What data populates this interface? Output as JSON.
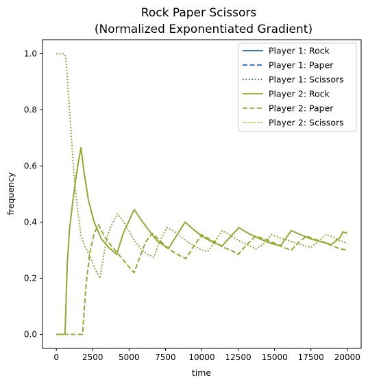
{
  "chart_data": {
    "type": "line",
    "title_line1": "Rock Paper Scissors",
    "title_line2": "(Normalized Exponentiated Gradient)",
    "xlabel": "time",
    "ylabel": "frequency",
    "xlim": [
      -950,
      20950
    ],
    "ylim": [
      -0.05,
      1.05
    ],
    "xticks": [
      0,
      2500,
      5000,
      7500,
      10000,
      12500,
      15000,
      17500,
      20000
    ],
    "yticks": [
      0.0,
      0.2,
      0.4,
      0.6,
      0.8,
      1.0
    ],
    "xtick_labels": [
      "0",
      "2500",
      "5000",
      "7500",
      "10000",
      "12500",
      "15000",
      "17500",
      "20000"
    ],
    "ytick_labels": [
      "0.0",
      "0.2",
      "0.4",
      "0.6",
      "0.8",
      "1.0"
    ],
    "legend_position": "upper right",
    "series": [
      {
        "name": "Player 1: Rock",
        "color": "#1565c0",
        "dash": "solid",
        "points": [
          [
            0,
            0
          ],
          [
            600,
            0
          ],
          [
            750,
            0.25
          ],
          [
            900,
            0.37
          ],
          [
            1100,
            0.46
          ],
          [
            1300,
            0.54
          ],
          [
            1500,
            0.61
          ],
          [
            1700,
            0.665
          ],
          [
            1900,
            0.58
          ],
          [
            2200,
            0.48
          ],
          [
            2600,
            0.4
          ],
          [
            3100,
            0.34
          ],
          [
            3600,
            0.31
          ],
          [
            4150,
            0.285
          ],
          [
            4600,
            0.36
          ],
          [
            5000,
            0.405
          ],
          [
            5350,
            0.445
          ],
          [
            5800,
            0.41
          ],
          [
            6300,
            0.375
          ],
          [
            6900,
            0.335
          ],
          [
            7700,
            0.305
          ],
          [
            8300,
            0.355
          ],
          [
            8850,
            0.4
          ],
          [
            9400,
            0.375
          ],
          [
            10000,
            0.35
          ],
          [
            10700,
            0.33
          ],
          [
            11400,
            0.315
          ],
          [
            12000,
            0.35
          ],
          [
            12550,
            0.38
          ],
          [
            13200,
            0.36
          ],
          [
            14000,
            0.34
          ],
          [
            14700,
            0.325
          ],
          [
            15400,
            0.315
          ],
          [
            16150,
            0.37
          ],
          [
            16800,
            0.355
          ],
          [
            17500,
            0.34
          ],
          [
            18200,
            0.33
          ],
          [
            18900,
            0.32
          ],
          [
            19500,
            0.345
          ],
          [
            19700,
            0.365
          ],
          [
            20000,
            0.36
          ]
        ]
      },
      {
        "name": "Player 1: Paper",
        "color": "#1565c0",
        "dash": "dashed",
        "points": [
          [
            0,
            0
          ],
          [
            1800,
            0
          ],
          [
            2050,
            0.18
          ],
          [
            2300,
            0.29
          ],
          [
            2600,
            0.36
          ],
          [
            2900,
            0.39
          ],
          [
            3300,
            0.35
          ],
          [
            3800,
            0.315
          ],
          [
            4200,
            0.29
          ],
          [
            4600,
            0.265
          ],
          [
            5000,
            0.24
          ],
          [
            5350,
            0.22
          ],
          [
            5700,
            0.27
          ],
          [
            6150,
            0.33
          ],
          [
            6600,
            0.36
          ],
          [
            7000,
            0.34
          ],
          [
            7500,
            0.315
          ],
          [
            8000,
            0.295
          ],
          [
            8500,
            0.28
          ],
          [
            8900,
            0.27
          ],
          [
            9400,
            0.31
          ],
          [
            10000,
            0.355
          ],
          [
            10500,
            0.34
          ],
          [
            11000,
            0.325
          ],
          [
            11500,
            0.31
          ],
          [
            12000,
            0.3
          ],
          [
            12500,
            0.285
          ],
          [
            13100,
            0.32
          ],
          [
            13700,
            0.35
          ],
          [
            14300,
            0.34
          ],
          [
            15000,
            0.325
          ],
          [
            15600,
            0.31
          ],
          [
            16150,
            0.3
          ],
          [
            16700,
            0.33
          ],
          [
            17200,
            0.35
          ],
          [
            17700,
            0.34
          ],
          [
            18300,
            0.33
          ],
          [
            19000,
            0.315
          ],
          [
            19500,
            0.305
          ],
          [
            20000,
            0.3
          ]
        ]
      },
      {
        "name": "Player 1: Scissors",
        "color": "#1565c0",
        "dash": "dotted",
        "points": [
          [
            0,
            1.0
          ],
          [
            500,
            1.0
          ],
          [
            650,
            0.99
          ],
          [
            800,
            0.88
          ],
          [
            1000,
            0.73
          ],
          [
            1200,
            0.58
          ],
          [
            1450,
            0.45
          ],
          [
            1700,
            0.35
          ],
          [
            2000,
            0.31
          ],
          [
            2300,
            0.28
          ],
          [
            2600,
            0.24
          ],
          [
            2800,
            0.22
          ],
          [
            3000,
            0.2
          ],
          [
            3250,
            0.28
          ],
          [
            3500,
            0.35
          ],
          [
            3800,
            0.39
          ],
          [
            4200,
            0.43
          ],
          [
            4700,
            0.395
          ],
          [
            5300,
            0.34
          ],
          [
            5800,
            0.305
          ],
          [
            6300,
            0.285
          ],
          [
            6700,
            0.275
          ],
          [
            7100,
            0.33
          ],
          [
            7600,
            0.38
          ],
          [
            8000,
            0.37
          ],
          [
            8500,
            0.35
          ],
          [
            9000,
            0.33
          ],
          [
            9500,
            0.315
          ],
          [
            10000,
            0.3
          ],
          [
            10400,
            0.295
          ],
          [
            10900,
            0.33
          ],
          [
            11400,
            0.37
          ],
          [
            11900,
            0.355
          ],
          [
            12500,
            0.335
          ],
          [
            13100,
            0.32
          ],
          [
            13700,
            0.305
          ],
          [
            14200,
            0.32
          ],
          [
            14800,
            0.355
          ],
          [
            15300,
            0.345
          ],
          [
            15900,
            0.335
          ],
          [
            16500,
            0.325
          ],
          [
            17100,
            0.315
          ],
          [
            17500,
            0.31
          ],
          [
            18000,
            0.33
          ],
          [
            18500,
            0.355
          ],
          [
            18900,
            0.35
          ],
          [
            19400,
            0.335
          ],
          [
            20000,
            0.325
          ]
        ]
      },
      {
        "name": "Player 2: Rock",
        "color": "#9aad1e",
        "dash": "solid",
        "points": [
          [
            0,
            0
          ],
          [
            600,
            0
          ],
          [
            750,
            0.25
          ],
          [
            900,
            0.37
          ],
          [
            1100,
            0.46
          ],
          [
            1300,
            0.54
          ],
          [
            1500,
            0.61
          ],
          [
            1700,
            0.665
          ],
          [
            1900,
            0.58
          ],
          [
            2200,
            0.48
          ],
          [
            2600,
            0.4
          ],
          [
            3100,
            0.34
          ],
          [
            3600,
            0.31
          ],
          [
            4150,
            0.285
          ],
          [
            4600,
            0.36
          ],
          [
            5000,
            0.405
          ],
          [
            5350,
            0.445
          ],
          [
            5800,
            0.41
          ],
          [
            6300,
            0.375
          ],
          [
            6900,
            0.335
          ],
          [
            7700,
            0.305
          ],
          [
            8300,
            0.355
          ],
          [
            8850,
            0.4
          ],
          [
            9400,
            0.375
          ],
          [
            10000,
            0.35
          ],
          [
            10700,
            0.33
          ],
          [
            11400,
            0.315
          ],
          [
            12000,
            0.35
          ],
          [
            12550,
            0.38
          ],
          [
            13200,
            0.36
          ],
          [
            14000,
            0.34
          ],
          [
            14700,
            0.325
          ],
          [
            15400,
            0.315
          ],
          [
            16150,
            0.37
          ],
          [
            16800,
            0.355
          ],
          [
            17500,
            0.34
          ],
          [
            18200,
            0.33
          ],
          [
            18900,
            0.32
          ],
          [
            19500,
            0.345
          ],
          [
            19700,
            0.365
          ],
          [
            20000,
            0.36
          ]
        ]
      },
      {
        "name": "Player 2: Paper",
        "color": "#9aad1e",
        "dash": "dashed",
        "points": [
          [
            0,
            0
          ],
          [
            1800,
            0
          ],
          [
            2050,
            0.18
          ],
          [
            2300,
            0.29
          ],
          [
            2600,
            0.36
          ],
          [
            2900,
            0.39
          ],
          [
            3300,
            0.35
          ],
          [
            3800,
            0.315
          ],
          [
            4200,
            0.29
          ],
          [
            4600,
            0.265
          ],
          [
            5000,
            0.24
          ],
          [
            5350,
            0.22
          ],
          [
            5700,
            0.27
          ],
          [
            6150,
            0.33
          ],
          [
            6600,
            0.36
          ],
          [
            7000,
            0.34
          ],
          [
            7500,
            0.315
          ],
          [
            8000,
            0.295
          ],
          [
            8500,
            0.28
          ],
          [
            8900,
            0.27
          ],
          [
            9400,
            0.31
          ],
          [
            10000,
            0.355
          ],
          [
            10500,
            0.34
          ],
          [
            11000,
            0.325
          ],
          [
            11500,
            0.31
          ],
          [
            12000,
            0.3
          ],
          [
            12500,
            0.285
          ],
          [
            13100,
            0.32
          ],
          [
            13700,
            0.35
          ],
          [
            14300,
            0.34
          ],
          [
            15000,
            0.325
          ],
          [
            15600,
            0.31
          ],
          [
            16150,
            0.3
          ],
          [
            16700,
            0.33
          ],
          [
            17200,
            0.35
          ],
          [
            17700,
            0.34
          ],
          [
            18300,
            0.33
          ],
          [
            19000,
            0.315
          ],
          [
            19500,
            0.305
          ],
          [
            20000,
            0.3
          ]
        ]
      },
      {
        "name": "Player 2: Scissors",
        "color": "#9aad1e",
        "dash": "dotted",
        "points": [
          [
            0,
            1.0
          ],
          [
            500,
            1.0
          ],
          [
            650,
            0.99
          ],
          [
            800,
            0.88
          ],
          [
            1000,
            0.73
          ],
          [
            1200,
            0.58
          ],
          [
            1450,
            0.45
          ],
          [
            1700,
            0.35
          ],
          [
            2000,
            0.31
          ],
          [
            2300,
            0.28
          ],
          [
            2600,
            0.24
          ],
          [
            2800,
            0.22
          ],
          [
            3000,
            0.2
          ],
          [
            3250,
            0.28
          ],
          [
            3500,
            0.35
          ],
          [
            3800,
            0.39
          ],
          [
            4200,
            0.43
          ],
          [
            4700,
            0.395
          ],
          [
            5300,
            0.34
          ],
          [
            5800,
            0.305
          ],
          [
            6300,
            0.285
          ],
          [
            6700,
            0.275
          ],
          [
            7100,
            0.33
          ],
          [
            7600,
            0.38
          ],
          [
            8000,
            0.37
          ],
          [
            8500,
            0.35
          ],
          [
            9000,
            0.33
          ],
          [
            9500,
            0.315
          ],
          [
            10000,
            0.3
          ],
          [
            10400,
            0.295
          ],
          [
            10900,
            0.33
          ],
          [
            11400,
            0.37
          ],
          [
            11900,
            0.355
          ],
          [
            12500,
            0.335
          ],
          [
            13100,
            0.32
          ],
          [
            13700,
            0.305
          ],
          [
            14200,
            0.32
          ],
          [
            14800,
            0.355
          ],
          [
            15300,
            0.345
          ],
          [
            15900,
            0.335
          ],
          [
            16500,
            0.325
          ],
          [
            17100,
            0.315
          ],
          [
            17500,
            0.31
          ],
          [
            18000,
            0.33
          ],
          [
            18500,
            0.355
          ],
          [
            18900,
            0.35
          ],
          [
            19400,
            0.335
          ],
          [
            20000,
            0.325
          ]
        ]
      }
    ]
  }
}
